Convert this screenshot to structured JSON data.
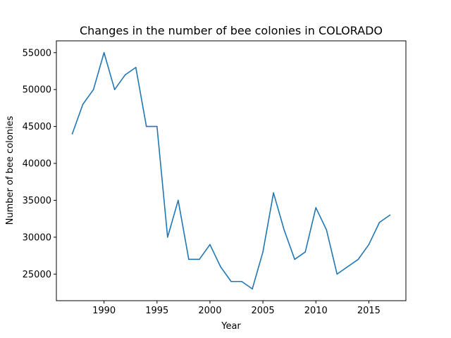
{
  "chart_data": {
    "type": "line",
    "title": "Changes in the number of bee colonies in COLORADO",
    "xlabel": "Year",
    "ylabel": "Number of bee colonies",
    "grid": false,
    "xlim": [
      1985.5,
      2018.5
    ],
    "ylim": [
      21400,
      56600
    ],
    "x_ticks": [
      1990,
      1995,
      2000,
      2005,
      2010,
      2015
    ],
    "y_ticks": [
      25000,
      30000,
      35000,
      40000,
      45000,
      50000,
      55000
    ],
    "line_color": "#1f77b4",
    "series": [
      {
        "x": [
          1987,
          1988,
          1989,
          1990,
          1991,
          1992,
          1993,
          1994,
          1995,
          1996,
          1997,
          1998,
          1999,
          2000,
          2001,
          2002,
          2003,
          2004,
          2005,
          2006,
          2007,
          2008,
          2009,
          2010,
          2011,
          2012,
          2013,
          2014,
          2015,
          2016,
          2017
        ],
        "y": [
          44000,
          48000,
          50000,
          55000,
          50000,
          52000,
          53000,
          45000,
          45000,
          30000,
          35000,
          27000,
          27000,
          29000,
          26000,
          24000,
          24000,
          23000,
          28000,
          36000,
          31000,
          27000,
          28000,
          34000,
          31000,
          25000,
          26000,
          27000,
          29000,
          32000,
          33000
        ]
      }
    ]
  }
}
